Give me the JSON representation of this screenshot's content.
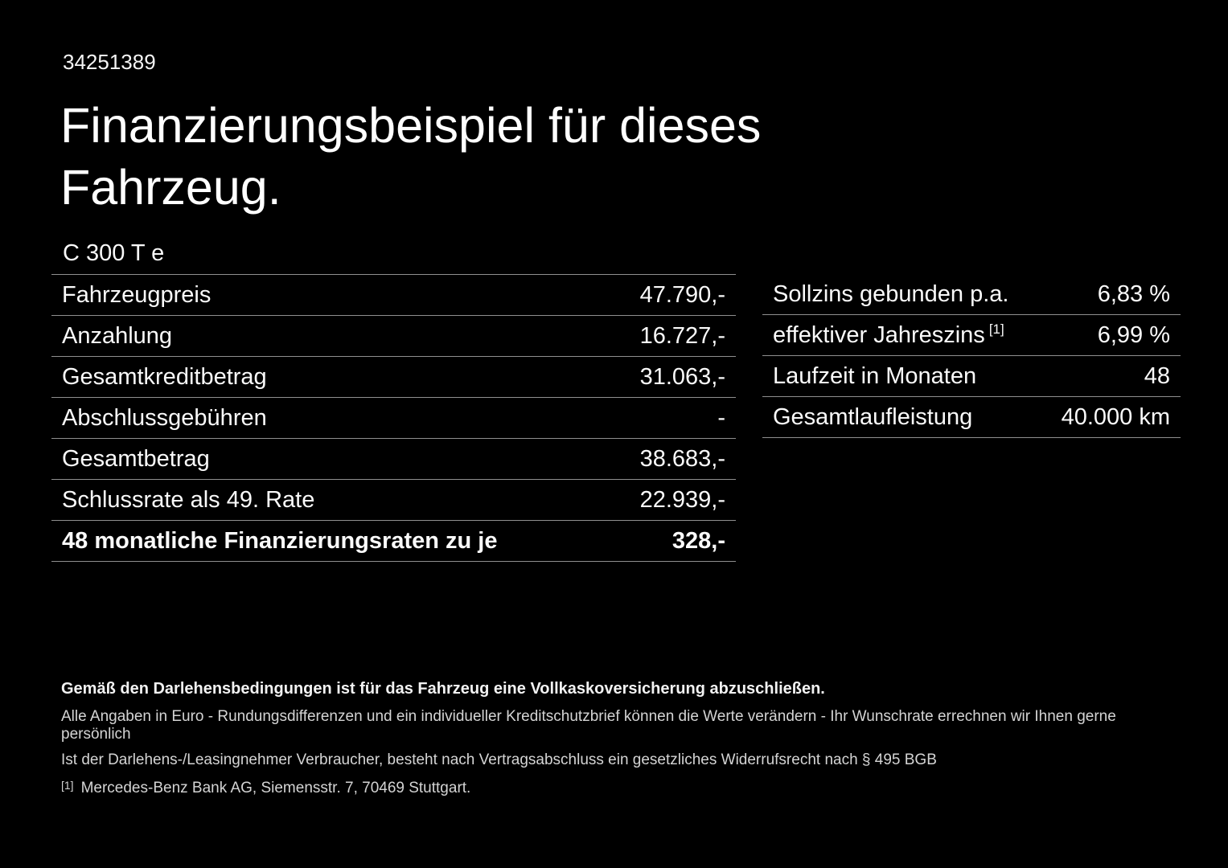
{
  "colors": {
    "background": "#000000",
    "text": "#ffffff",
    "divider": "#8f8f8f",
    "footer_text": "#d4d4d4"
  },
  "header": {
    "listing_id": "34251389",
    "title_line1": "Finanzierungsbeispiel für dieses",
    "title_line2": "Fahrzeug.",
    "vehicle_model": "C 300 T e"
  },
  "financing_table": {
    "rows": [
      {
        "label": "Fahrzeugpreis",
        "value": "47.790,-"
      },
      {
        "label": "Anzahlung",
        "value": "16.727,-"
      },
      {
        "label": "Gesamtkreditbetrag",
        "value": "31.063,-"
      },
      {
        "label": "Abschlussgebühren",
        "value": "-"
      },
      {
        "label": "Gesamtbetrag",
        "value": "38.683,-"
      },
      {
        "label": "Schlussrate als 49. Rate",
        "value": "22.939,-"
      },
      {
        "label": "48 monatliche Finanzierungsraten zu je",
        "value": "328,-"
      }
    ]
  },
  "conditions_table": {
    "rows": [
      {
        "label": "Sollzins gebunden p.a.",
        "value": "6,83 %"
      },
      {
        "label": "effektiver Jahreszins",
        "sup": "[1]",
        "value": "6,99 %"
      },
      {
        "label": "Laufzeit in Monaten",
        "value": "48"
      },
      {
        "label": "Gesamtlaufleistung",
        "value": "40.000 km"
      }
    ]
  },
  "footer": {
    "insurance_note": "Gemäß den Darlehensbedingungen ist für das Fahrzeug eine Vollkaskoversicherung abzuschließen.",
    "rounding_note": "Alle Angaben in Euro - Rundungsdifferenzen und ein individueller Kreditschutzbrief können die Werte verändern - Ihr Wunschrate errechnen wir Ihnen gerne persönlich",
    "withdrawal_note": "Ist der Darlehens-/Leasingnehmer Verbraucher, besteht nach Vertragsabschluss ein gesetzliches Widerrufsrecht nach § 495 BGB",
    "footnote_marker": "[1]",
    "footnote_text": "Mercedes-Benz Bank AG, Siemensstr. 7, 70469 Stuttgart."
  }
}
